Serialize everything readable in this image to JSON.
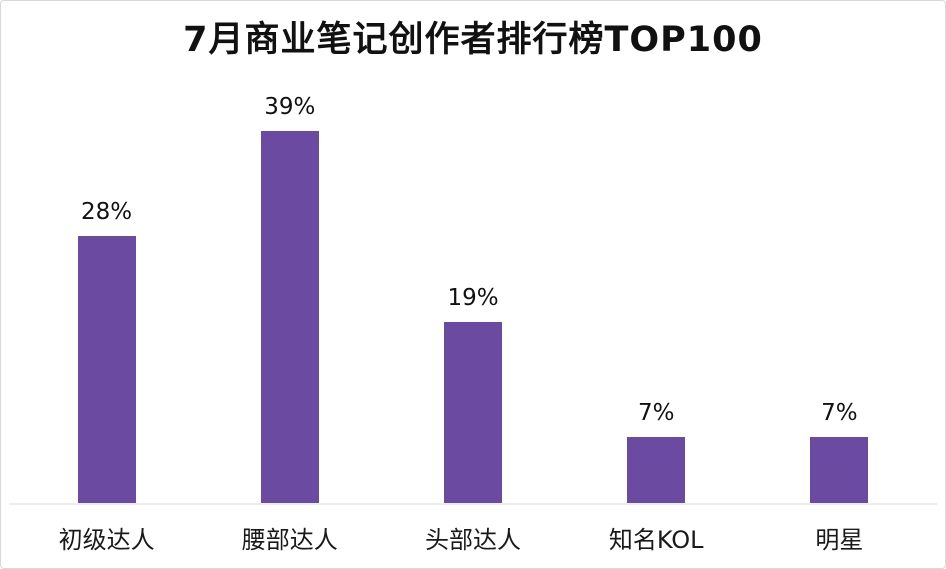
{
  "chart_data": {
    "type": "bar",
    "title": "7月商业笔记创作者排行榜TOP100",
    "categories": [
      "初级达人",
      "腰部达人",
      "头部达人",
      "知名KOL",
      "明星"
    ],
    "values": [
      28,
      39,
      19,
      7,
      7
    ],
    "value_labels": [
      "28%",
      "39%",
      "19%",
      "7%",
      "7%"
    ],
    "xlabel": "",
    "ylabel": "",
    "ylim": [
      0,
      45
    ],
    "grid": false,
    "legend": "none",
    "bar_color": "#6B4BA1",
    "baseline_color": "#ededed",
    "title_color": "#111111",
    "label_color": "#1a1a1a"
  }
}
